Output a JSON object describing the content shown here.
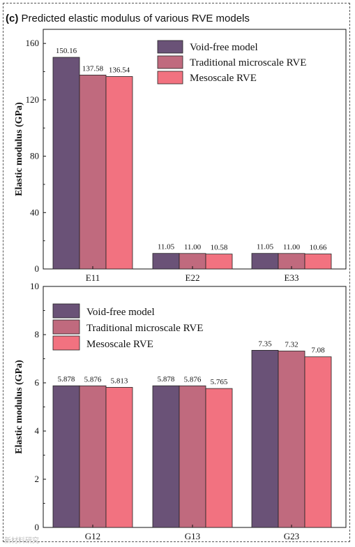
{
  "panel_label": "(c)",
  "panel_title": "Predicted elastic modulus of various RVE models",
  "watermark": "新材料研究",
  "colors": [
    "#6a5277",
    "#c06a7e",
    "#f27280"
  ],
  "chart_data": [
    {
      "type": "bar",
      "categories": [
        "E11",
        "E22",
        "E33"
      ],
      "series": [
        {
          "name": "Void-free model",
          "values": [
            150.16,
            11.05,
            11.05
          ],
          "labels": [
            "150.16",
            "11.05",
            "11.05"
          ]
        },
        {
          "name": "Traditional microscale RVE",
          "values": [
            137.58,
            11.0,
            11.0
          ],
          "labels": [
            "137.58",
            "11.00",
            "11.00"
          ]
        },
        {
          "name": "Mesoscale RVE",
          "values": [
            136.54,
            10.58,
            10.66
          ],
          "labels": [
            "136.54",
            "10.58",
            "10.66"
          ]
        }
      ],
      "ylabel": "Elastic modulus (GPa)",
      "ylim": [
        0,
        170
      ],
      "yticks": [
        0,
        40,
        80,
        120,
        160
      ],
      "legend": "top-right",
      "grid": false
    },
    {
      "type": "bar",
      "categories": [
        "G12",
        "G13",
        "G23"
      ],
      "series": [
        {
          "name": "Void-free model",
          "values": [
            5.878,
            5.878,
            7.35
          ],
          "labels": [
            "5.878",
            "5.878",
            "7.35"
          ]
        },
        {
          "name": "Traditional microscale RVE",
          "values": [
            5.876,
            5.876,
            7.32
          ],
          "labels": [
            "5.876",
            "5.876",
            "7.32"
          ]
        },
        {
          "name": "Mesoscale RVE",
          "values": [
            5.813,
            5.765,
            7.08
          ],
          "labels": [
            "5.813",
            "5.765",
            "7.08"
          ]
        }
      ],
      "ylabel": "Elastic modulus (GPa)",
      "ylim": [
        0,
        10
      ],
      "yticks": [
        0,
        2,
        4,
        6,
        8,
        10
      ],
      "legend": "top-left",
      "grid": false
    }
  ]
}
